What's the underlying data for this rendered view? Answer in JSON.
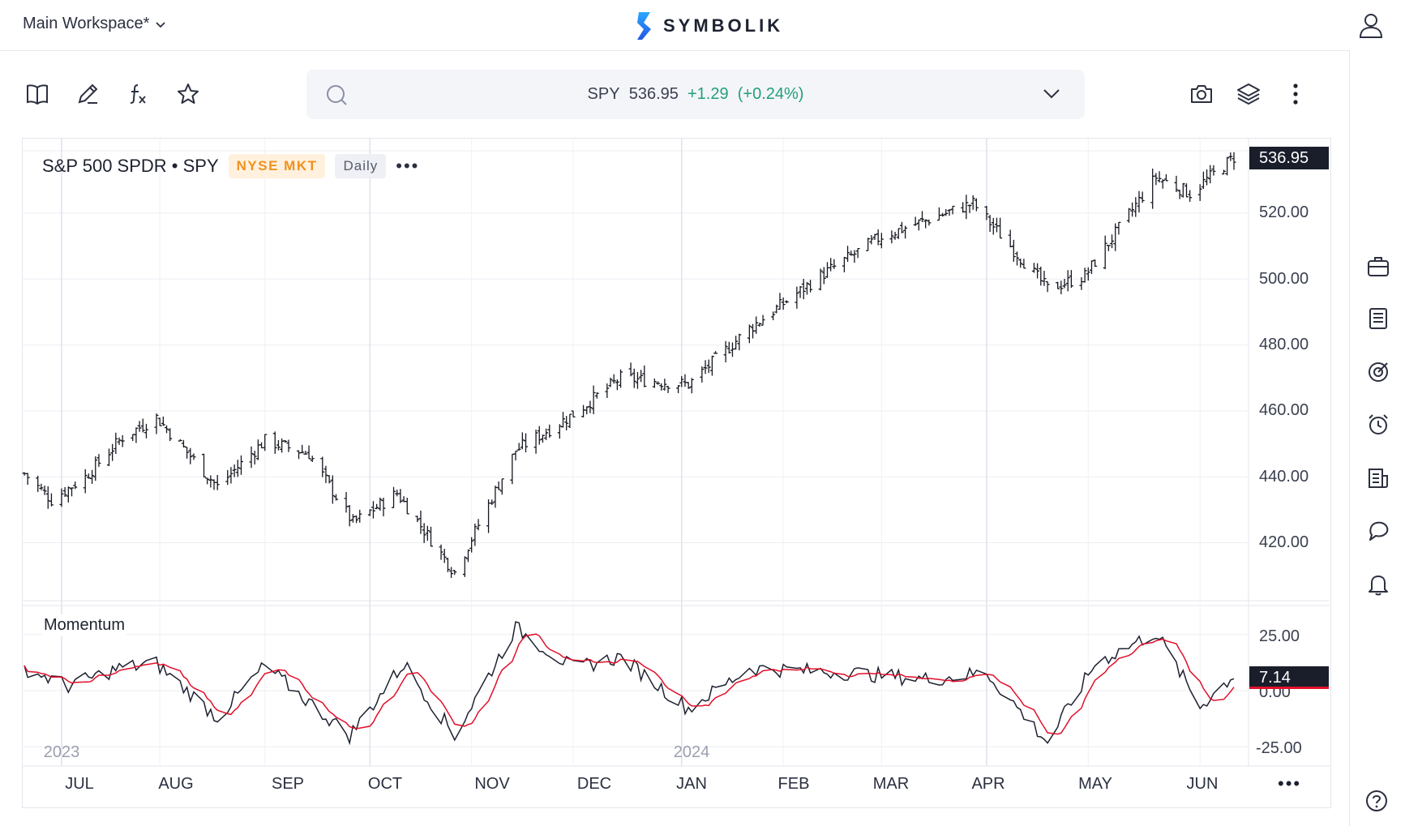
{
  "header": {
    "workspace_label": "Main Workspace*",
    "brand_name": "SYMBOLIK",
    "icons": [
      "chevron-down-icon",
      "symbolik-logo-icon",
      "user-icon"
    ]
  },
  "toolbar": {
    "left_icons": [
      "book-icon",
      "pencil-icon",
      "function-icon",
      "star-icon"
    ],
    "right_icons": [
      "camera-icon",
      "layers-icon",
      "more-vertical-icon"
    ]
  },
  "search": {
    "symbol": "SPY",
    "last": "536.95",
    "change": "+1.29",
    "change_pct": "(+0.24%)",
    "change_color": "#22a07a"
  },
  "legend": {
    "instrument": "S&P 500 SPDR • SPY",
    "exchange": "NYSE MKT",
    "interval": "Daily",
    "more": "•••"
  },
  "indicator": {
    "name": "Momentum",
    "current_value": "7.14",
    "line_color": "#1d2230",
    "signal_color": "#e0102a"
  },
  "price_axis": {
    "labels": [
      "520.00",
      "500.00",
      "480.00",
      "460.00",
      "440.00",
      "420.00"
    ],
    "current_price": "536.95"
  },
  "momentum_axis": {
    "labels": [
      "25.00",
      "0.00",
      "-25.00"
    ]
  },
  "time_axis": {
    "months": [
      "JUL",
      "AUG",
      "SEP",
      "OCT",
      "NOV",
      "DEC",
      "JAN",
      "FEB",
      "MAR",
      "APR",
      "MAY",
      "JUN"
    ],
    "years": [
      "2023",
      "2024"
    ],
    "more": "•••"
  },
  "right_rail": {
    "icons": [
      "briefcase-icon",
      "list-icon",
      "target-icon",
      "alarm-clock-icon",
      "news-icon",
      "chat-icon",
      "bell-icon",
      "help-icon"
    ]
  },
  "chart_data": {
    "type": "ohlc",
    "interval": "Daily",
    "symbol": "SPY",
    "date_range": [
      "2023-06-22",
      "2024-06-13"
    ],
    "ylim": [
      405,
      540
    ],
    "last_close": 536.95,
    "monthly_closes": {
      "categories": [
        "2023-06",
        "2023-07",
        "2023-08",
        "2023-09",
        "2023-10",
        "2023-11",
        "2023-12",
        "2024-01",
        "2024-02",
        "2024-03",
        "2024-04",
        "2024-05",
        "2024-06"
      ],
      "values": [
        443.3,
        457.8,
        450.4,
        427.5,
        418.2,
        456.4,
        475.3,
        482.9,
        508.1,
        523.1,
        501.0,
        527.4,
        536.9
      ]
    },
    "daily_close_anchors": [
      {
        "x": "2023-06-22",
        "y": 441
      },
      {
        "x": "2023-06-30",
        "y": 433
      },
      {
        "x": "2023-07-10",
        "y": 440
      },
      {
        "x": "2023-07-21",
        "y": 452
      },
      {
        "x": "2023-07-31",
        "y": 458
      },
      {
        "x": "2023-08-18",
        "y": 437
      },
      {
        "x": "2023-09-01",
        "y": 451
      },
      {
        "x": "2023-09-14",
        "y": 447
      },
      {
        "x": "2023-09-27",
        "y": 426
      },
      {
        "x": "2023-10-10",
        "y": 435
      },
      {
        "x": "2023-10-27",
        "y": 411
      },
      {
        "x": "2023-11-14",
        "y": 448
      },
      {
        "x": "2023-12-01",
        "y": 459
      },
      {
        "x": "2023-12-15",
        "y": 470
      },
      {
        "x": "2024-01-04",
        "y": 468
      },
      {
        "x": "2024-01-22",
        "y": 485
      },
      {
        "x": "2024-02-12",
        "y": 501
      },
      {
        "x": "2024-03-01",
        "y": 513
      },
      {
        "x": "2024-03-28",
        "y": 523
      },
      {
        "x": "2024-04-19",
        "y": 497
      },
      {
        "x": "2024-04-30",
        "y": 501
      },
      {
        "x": "2024-05-21",
        "y": 531
      },
      {
        "x": "2024-05-31",
        "y": 526
      },
      {
        "x": "2024-06-13",
        "y": 536.95
      }
    ],
    "momentum": {
      "ylim": [
        -30,
        32
      ],
      "current": 7.14,
      "anchors": [
        {
          "x": "2023-06-22",
          "y": 10
        },
        {
          "x": "2023-07-05",
          "y": 2
        },
        {
          "x": "2023-07-20",
          "y": 10
        },
        {
          "x": "2023-07-31",
          "y": 12
        },
        {
          "x": "2023-08-18",
          "y": -12
        },
        {
          "x": "2023-09-01",
          "y": 11
        },
        {
          "x": "2023-09-26",
          "y": -20
        },
        {
          "x": "2023-10-12",
          "y": 12
        },
        {
          "x": "2023-10-27",
          "y": -20
        },
        {
          "x": "2023-11-14",
          "y": 28
        },
        {
          "x": "2023-12-01",
          "y": 10
        },
        {
          "x": "2023-12-15",
          "y": 15
        },
        {
          "x": "2024-01-04",
          "y": -8
        },
        {
          "x": "2024-01-22",
          "y": 10
        },
        {
          "x": "2024-02-20",
          "y": 8
        },
        {
          "x": "2024-03-15",
          "y": 5
        },
        {
          "x": "2024-04-01",
          "y": 8
        },
        {
          "x": "2024-04-19",
          "y": -23
        },
        {
          "x": "2024-05-03",
          "y": 12
        },
        {
          "x": "2024-05-21",
          "y": 26
        },
        {
          "x": "2024-06-03",
          "y": -7
        },
        {
          "x": "2024-06-13",
          "y": 7
        }
      ]
    }
  }
}
